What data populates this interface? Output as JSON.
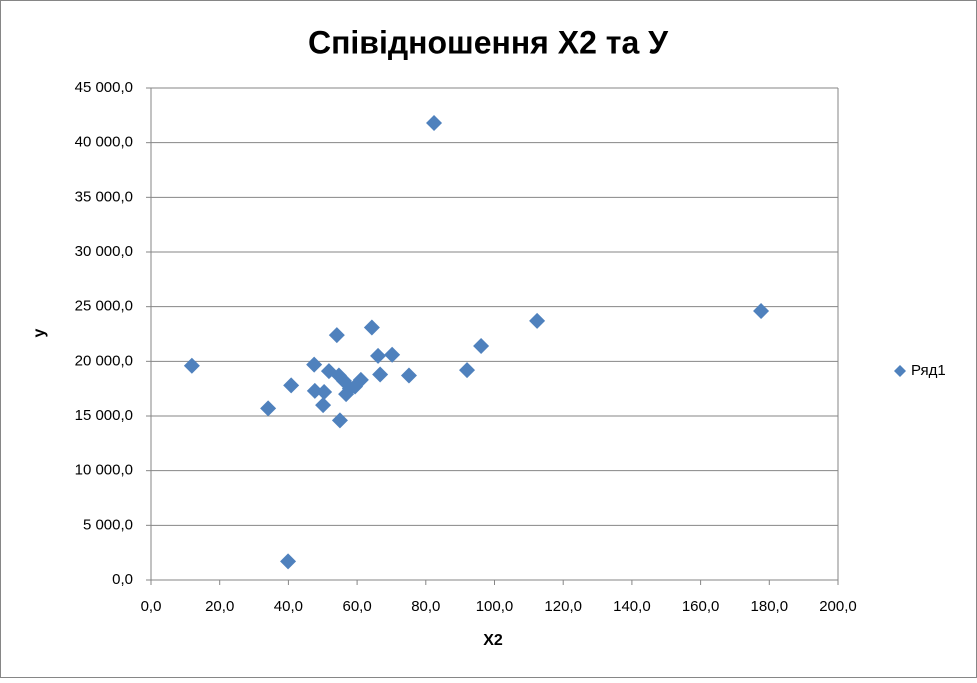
{
  "chart_data": {
    "type": "scatter",
    "title": "Співідношення Х2 та У",
    "x_label": "Х2",
    "y_label": "у",
    "series": [
      {
        "name": "Ряд1",
        "color": "#4f81bd",
        "x": [
          11.9,
          34.1,
          40.8,
          39.9,
          47.5,
          47.7,
          50.4,
          50.1,
          51.8,
          54.1,
          55.0,
          54.7,
          56.2,
          56.8,
          57.9,
          59.4,
          61.1,
          64.3,
          66.1,
          66.7,
          70.2,
          75.1,
          82.4,
          92.0,
          96.1,
          112.4,
          177.6
        ],
        "values": [
          19600,
          15700,
          17800,
          1700,
          19700,
          17300,
          17200,
          16000,
          19100,
          22400,
          14600,
          18700,
          18200,
          17000,
          17500,
          17700,
          18300,
          23100,
          20500,
          18800,
          20600,
          18700,
          41800,
          19200,
          21400,
          23700,
          24600
        ]
      }
    ],
    "xlim": [
      0,
      200
    ],
    "ylim": [
      0,
      45000
    ],
    "xticks": [
      {
        "value": 0,
        "label": "0,0"
      },
      {
        "value": 20,
        "label": "20,0"
      },
      {
        "value": 40,
        "label": "40,0"
      },
      {
        "value": 60,
        "label": "60,0"
      },
      {
        "value": 80,
        "label": "80,0"
      },
      {
        "value": 100,
        "label": "100,0"
      },
      {
        "value": 120,
        "label": "120,0"
      },
      {
        "value": 140,
        "label": "140,0"
      },
      {
        "value": 160,
        "label": "160,0"
      },
      {
        "value": 180,
        "label": "180,0"
      },
      {
        "value": 200,
        "label": "200,0"
      }
    ],
    "yticks": [
      {
        "value": 0,
        "label": "0,0"
      },
      {
        "value": 5000,
        "label": "5 000,0"
      },
      {
        "value": 10000,
        "label": "10 000,0"
      },
      {
        "value": 15000,
        "label": "15 000,0"
      },
      {
        "value": 20000,
        "label": "20 000,0"
      },
      {
        "value": 25000,
        "label": "25 000,0"
      },
      {
        "value": 30000,
        "label": "30 000,0"
      },
      {
        "value": 35000,
        "label": "35 000,0"
      },
      {
        "value": 40000,
        "label": "40 000,0"
      },
      {
        "value": 45000,
        "label": "45 000,0"
      }
    ],
    "grid": true,
    "legend": "right"
  }
}
